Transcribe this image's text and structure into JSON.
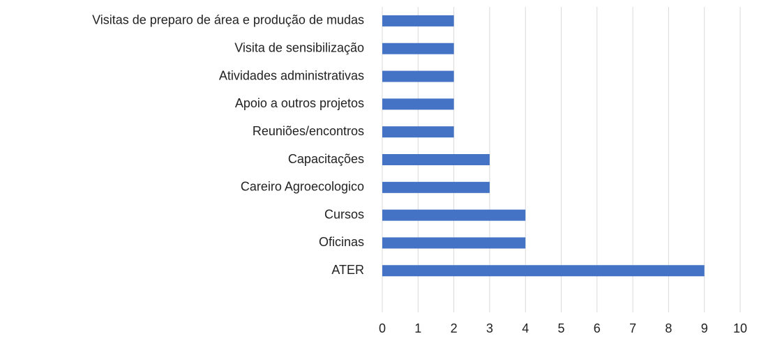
{
  "chart_data": {
    "type": "barh",
    "categories": [
      "Visitas de preparo de área e produção de mudas",
      "Visita de sensibilização",
      "Atividades administrativas",
      "Apoio a outros projetos",
      "Reuniões/encontros",
      "Capacitações",
      "Careiro Agroecologico",
      "Cursos",
      "Oficinas",
      "ATER",
      null
    ],
    "values": [
      2,
      2,
      2,
      2,
      2,
      3,
      3,
      4,
      4,
      9,
      null
    ],
    "color": "#4472c4",
    "xlim": [
      0,
      10
    ],
    "xticks": [
      0,
      1,
      2,
      3,
      4,
      5,
      6,
      7,
      8,
      9,
      10
    ],
    "grid": true
  }
}
